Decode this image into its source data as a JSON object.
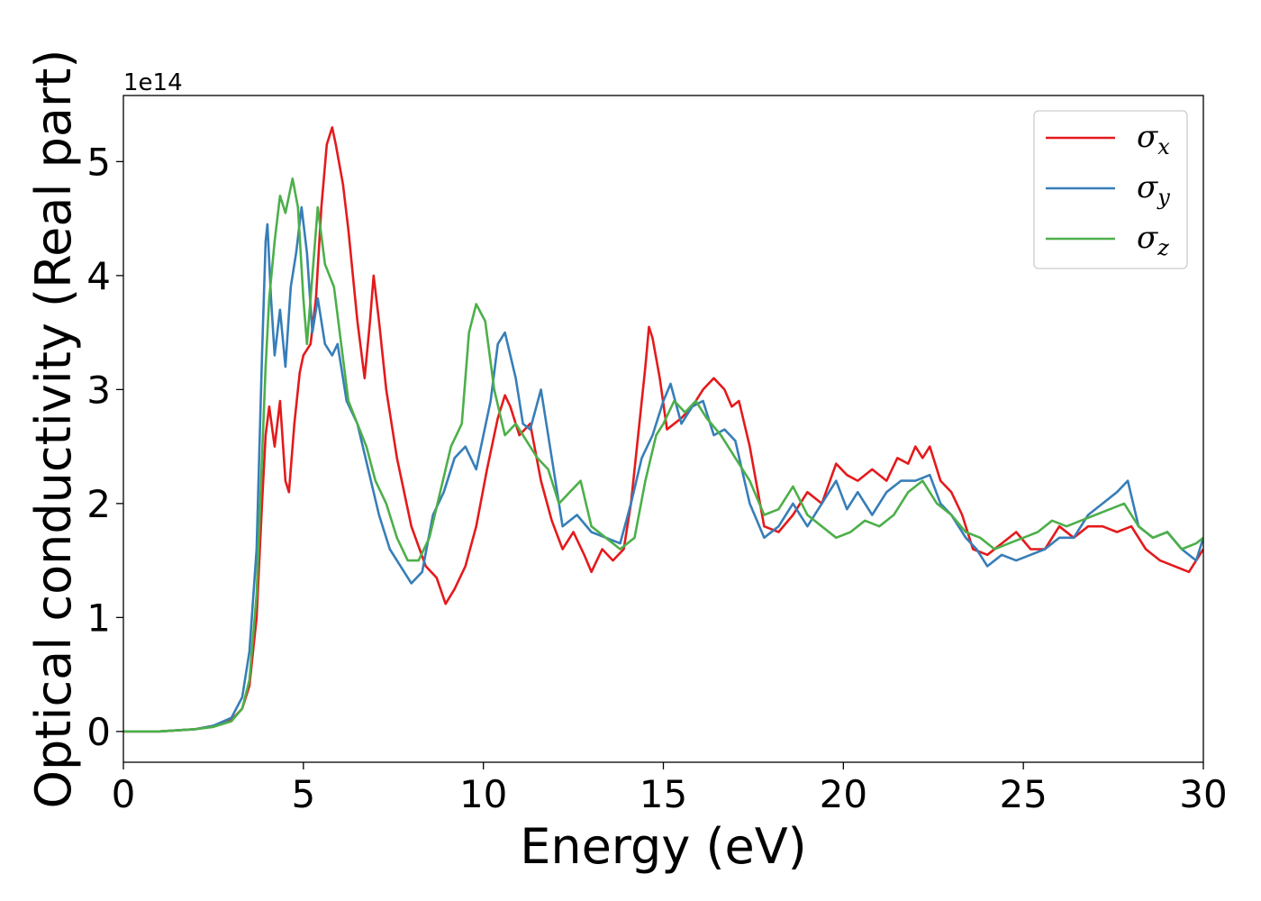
{
  "chart_data": {
    "type": "line",
    "title": "",
    "xlabel": "Energy (eV)",
    "ylabel": "Optical conductivity (Real part)",
    "y_offset_label": "1e14",
    "xlim": [
      0,
      30
    ],
    "ylim": [
      -0.27,
      5.58
    ],
    "xticks": [
      0,
      5,
      10,
      15,
      20,
      25,
      30
    ],
    "xtick_labels": [
      "0",
      "5",
      "10",
      "15",
      "20",
      "25",
      "30"
    ],
    "yticks": [
      0,
      1,
      2,
      3,
      4,
      5
    ],
    "ytick_labels": [
      "0",
      "1",
      "2",
      "3",
      "4",
      "5"
    ],
    "grid": false,
    "legend_position": "top-right",
    "series": [
      {
        "name": "σ_x",
        "symbol": "σ",
        "subscript": "x",
        "color": "#e41a1c",
        "x": [
          0,
          1,
          1.5,
          2,
          2.5,
          3,
          3.3,
          3.5,
          3.7,
          3.85,
          3.95,
          4.05,
          4.2,
          4.35,
          4.5,
          4.6,
          4.75,
          4.9,
          5.0,
          5.2,
          5.35,
          5.5,
          5.65,
          5.8,
          5.9,
          6.1,
          6.25,
          6.5,
          6.7,
          6.85,
          6.95,
          7.1,
          7.3,
          7.6,
          8.0,
          8.4,
          8.7,
          8.95,
          9.2,
          9.5,
          9.8,
          10.1,
          10.4,
          10.6,
          10.75,
          11.0,
          11.3,
          11.6,
          11.9,
          12.2,
          12.5,
          12.8,
          13.0,
          13.3,
          13.6,
          13.9,
          14.1,
          14.3,
          14.5,
          14.6,
          14.7,
          14.9,
          15.1,
          15.3,
          15.5,
          15.8,
          16.1,
          16.4,
          16.7,
          16.9,
          17.1,
          17.4,
          17.8,
          18.2,
          18.6,
          19.0,
          19.4,
          19.8,
          20.1,
          20.4,
          20.8,
          21.2,
          21.5,
          21.8,
          22.0,
          22.2,
          22.4,
          22.7,
          23.0,
          23.3,
          23.6,
          24.0,
          24.4,
          24.8,
          25.2,
          25.6,
          26.0,
          26.4,
          26.8,
          27.2,
          27.6,
          28.0,
          28.4,
          28.8,
          29.2,
          29.6,
          30
        ],
        "y": [
          0,
          0,
          0.01,
          0.02,
          0.05,
          0.1,
          0.2,
          0.4,
          1.0,
          2.0,
          2.6,
          2.85,
          2.5,
          2.9,
          2.2,
          2.1,
          2.7,
          3.15,
          3.3,
          3.4,
          3.8,
          4.6,
          5.15,
          5.3,
          5.15,
          4.8,
          4.4,
          3.6,
          3.1,
          3.6,
          4.0,
          3.6,
          3.0,
          2.4,
          1.8,
          1.45,
          1.35,
          1.12,
          1.25,
          1.45,
          1.8,
          2.3,
          2.75,
          2.95,
          2.85,
          2.6,
          2.7,
          2.2,
          1.85,
          1.6,
          1.75,
          1.55,
          1.4,
          1.6,
          1.5,
          1.6,
          2.0,
          2.6,
          3.2,
          3.55,
          3.45,
          3.1,
          2.65,
          2.7,
          2.75,
          2.85,
          3.0,
          3.1,
          3.0,
          2.85,
          2.9,
          2.5,
          1.8,
          1.75,
          1.9,
          2.1,
          2.0,
          2.35,
          2.25,
          2.2,
          2.3,
          2.2,
          2.4,
          2.35,
          2.5,
          2.4,
          2.5,
          2.2,
          2.1,
          1.9,
          1.6,
          1.55,
          1.65,
          1.75,
          1.6,
          1.6,
          1.8,
          1.7,
          1.8,
          1.8,
          1.75,
          1.8,
          1.6,
          1.5,
          1.45,
          1.4,
          1.6
        ]
      },
      {
        "name": "σ_y",
        "symbol": "σ",
        "subscript": "y",
        "color": "#377eb8",
        "x": [
          0,
          1,
          1.5,
          2,
          2.5,
          3,
          3.3,
          3.5,
          3.7,
          3.85,
          3.95,
          4.0,
          4.1,
          4.2,
          4.35,
          4.5,
          4.65,
          4.8,
          4.95,
          5.1,
          5.25,
          5.4,
          5.6,
          5.8,
          5.95,
          6.2,
          6.5,
          6.8,
          7.1,
          7.4,
          7.7,
          8.0,
          8.3,
          8.6,
          8.9,
          9.2,
          9.5,
          9.8,
          10.0,
          10.2,
          10.4,
          10.6,
          10.9,
          11.1,
          11.3,
          11.6,
          11.9,
          12.2,
          12.6,
          13.0,
          13.4,
          13.8,
          14.1,
          14.4,
          14.7,
          15.0,
          15.2,
          15.5,
          15.8,
          16.1,
          16.4,
          16.7,
          17.0,
          17.4,
          17.8,
          18.2,
          18.6,
          19.0,
          19.4,
          19.8,
          20.1,
          20.4,
          20.8,
          21.2,
          21.6,
          22.0,
          22.4,
          22.7,
          23.0,
          23.4,
          23.7,
          24.0,
          24.4,
          24.8,
          25.2,
          25.6,
          26.0,
          26.4,
          26.8,
          27.2,
          27.6,
          27.9,
          28.2,
          28.6,
          29.0,
          29.4,
          29.8,
          30
        ],
        "y": [
          0,
          0,
          0.01,
          0.02,
          0.05,
          0.12,
          0.3,
          0.7,
          1.6,
          3.3,
          4.3,
          4.45,
          3.8,
          3.3,
          3.7,
          3.2,
          3.9,
          4.2,
          4.6,
          4.2,
          3.5,
          3.8,
          3.4,
          3.3,
          3.4,
          2.9,
          2.7,
          2.3,
          1.9,
          1.6,
          1.45,
          1.3,
          1.4,
          1.9,
          2.1,
          2.4,
          2.5,
          2.3,
          2.6,
          2.9,
          3.4,
          3.5,
          3.1,
          2.7,
          2.65,
          3.0,
          2.4,
          1.8,
          1.9,
          1.75,
          1.7,
          1.65,
          2.0,
          2.4,
          2.6,
          2.9,
          3.05,
          2.7,
          2.85,
          2.9,
          2.6,
          2.65,
          2.55,
          2.0,
          1.7,
          1.8,
          2.0,
          1.8,
          2.0,
          2.2,
          1.95,
          2.1,
          1.9,
          2.1,
          2.2,
          2.2,
          2.25,
          2.0,
          1.9,
          1.7,
          1.6,
          1.45,
          1.55,
          1.5,
          1.55,
          1.6,
          1.7,
          1.7,
          1.9,
          2.0,
          2.1,
          2.2,
          1.8,
          1.7,
          1.75,
          1.6,
          1.5,
          1.7
        ]
      },
      {
        "name": "σ_z",
        "symbol": "σ",
        "subscript": "z",
        "color": "#4daf4a",
        "x": [
          0,
          1,
          1.5,
          2,
          2.5,
          3,
          3.3,
          3.5,
          3.7,
          3.85,
          3.95,
          4.05,
          4.2,
          4.35,
          4.5,
          4.7,
          4.85,
          5.0,
          5.1,
          5.25,
          5.4,
          5.6,
          5.85,
          6.05,
          6.25,
          6.5,
          6.75,
          7.0,
          7.3,
          7.6,
          7.9,
          8.2,
          8.5,
          8.8,
          9.1,
          9.4,
          9.6,
          9.8,
          10.05,
          10.3,
          10.6,
          10.9,
          11.2,
          11.5,
          11.8,
          12.1,
          12.4,
          12.7,
          13.0,
          13.4,
          13.8,
          14.2,
          14.5,
          14.8,
          15.0,
          15.3,
          15.6,
          15.9,
          16.2,
          16.6,
          17.0,
          17.4,
          17.8,
          18.2,
          18.6,
          19.0,
          19.4,
          19.8,
          20.2,
          20.6,
          21.0,
          21.4,
          21.8,
          22.2,
          22.6,
          23.0,
          23.4,
          23.8,
          24.2,
          24.6,
          25.0,
          25.4,
          25.8,
          26.2,
          26.6,
          27.0,
          27.4,
          27.8,
          28.2,
          28.6,
          29.0,
          29.4,
          29.8,
          30
        ],
        "y": [
          0,
          0,
          0.01,
          0.02,
          0.04,
          0.09,
          0.2,
          0.45,
          1.2,
          2.4,
          3.2,
          3.8,
          4.3,
          4.7,
          4.55,
          4.85,
          4.6,
          3.8,
          3.4,
          4.0,
          4.6,
          4.1,
          3.9,
          3.4,
          2.9,
          2.7,
          2.5,
          2.2,
          2.0,
          1.7,
          1.5,
          1.5,
          1.7,
          2.1,
          2.5,
          2.7,
          3.5,
          3.75,
          3.6,
          3.0,
          2.6,
          2.7,
          2.55,
          2.4,
          2.3,
          2.0,
          2.1,
          2.2,
          1.8,
          1.7,
          1.6,
          1.7,
          2.2,
          2.6,
          2.7,
          2.9,
          2.8,
          2.9,
          2.75,
          2.6,
          2.4,
          2.2,
          1.9,
          1.95,
          2.15,
          1.9,
          1.8,
          1.7,
          1.75,
          1.85,
          1.8,
          1.9,
          2.1,
          2.2,
          2.0,
          1.9,
          1.75,
          1.7,
          1.6,
          1.65,
          1.7,
          1.75,
          1.85,
          1.8,
          1.85,
          1.9,
          1.95,
          2.0,
          1.8,
          1.7,
          1.75,
          1.6,
          1.65,
          1.7
        ]
      }
    ]
  }
}
